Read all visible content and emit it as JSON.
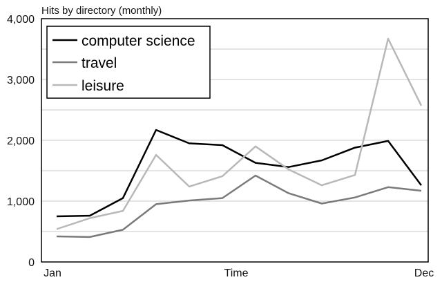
{
  "chart_data": {
    "type": "line",
    "title": "Hits by directory (monthly)",
    "xlabel": "Time",
    "ylabel": "",
    "x_tick_labels": [
      "Jan",
      "Dec"
    ],
    "x_points": 12,
    "ylim": [
      0,
      4000
    ],
    "yticks": [
      0,
      1000,
      2000,
      3000,
      4000
    ],
    "ytick_labels": [
      "0",
      "1,000",
      "2,000",
      "3,000",
      "4,000"
    ],
    "grid": true,
    "legend_position": "top-left",
    "series": [
      {
        "name": "computer science",
        "color": "#000000",
        "style": "solid",
        "values": [
          750,
          760,
          1050,
          2170,
          1950,
          1920,
          1630,
          1560,
          1670,
          1880,
          1990,
          1260
        ]
      },
      {
        "name": "travel",
        "color": "#7a7a7a",
        "style": "solid",
        "values": [
          420,
          410,
          530,
          950,
          1010,
          1050,
          1420,
          1130,
          960,
          1060,
          1230,
          1170
        ]
      },
      {
        "name": "leisure",
        "color": "#b8b8b8",
        "style": "solid",
        "values": [
          540,
          720,
          840,
          1760,
          1240,
          1410,
          1900,
          1520,
          1260,
          1430,
          3670,
          2570
        ]
      }
    ]
  }
}
